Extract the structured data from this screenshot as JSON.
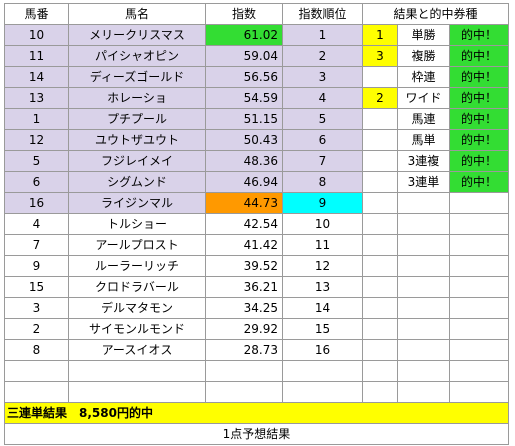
{
  "headers": {
    "umaban": "馬番",
    "bamei": "馬名",
    "shisu": "指数",
    "juni": "指数順位",
    "kekka": "結果と的中券種"
  },
  "rows": [
    {
      "umaban": "10",
      "bamei": "メリークリスマス",
      "shisu": "61.02",
      "juni": "1",
      "rank_mark": "1",
      "ticket": "単勝",
      "hit": "的中！"
    },
    {
      "umaban": "11",
      "bamei": "パイシャオピン",
      "shisu": "59.04",
      "juni": "2",
      "rank_mark": "3",
      "ticket": "複勝",
      "hit": "的中！"
    },
    {
      "umaban": "14",
      "bamei": "ディーズゴールド",
      "shisu": "56.56",
      "juni": "3",
      "rank_mark": "",
      "ticket": "枠連",
      "hit": "的中！"
    },
    {
      "umaban": "13",
      "bamei": "ホレーショ",
      "shisu": "54.59",
      "juni": "4",
      "rank_mark": "2",
      "ticket": "ワイド",
      "hit": "的中！"
    },
    {
      "umaban": "1",
      "bamei": "プチプール",
      "shisu": "51.15",
      "juni": "5",
      "rank_mark": "",
      "ticket": "馬連",
      "hit": "的中！"
    },
    {
      "umaban": "12",
      "bamei": "ユウトザユウト",
      "shisu": "50.43",
      "juni": "6",
      "rank_mark": "",
      "ticket": "馬単",
      "hit": "的中！"
    },
    {
      "umaban": "5",
      "bamei": "フジレイメイ",
      "shisu": "48.36",
      "juni": "7",
      "rank_mark": "",
      "ticket": "3連複",
      "hit": "的中！"
    },
    {
      "umaban": "6",
      "bamei": "シグムンド",
      "shisu": "46.94",
      "juni": "8",
      "rank_mark": "",
      "ticket": "3連単",
      "hit": "的中！"
    },
    {
      "umaban": "16",
      "bamei": "ライジンマル",
      "shisu": "44.73",
      "juni": "9",
      "rank_mark": "",
      "ticket": "",
      "hit": ""
    },
    {
      "umaban": "4",
      "bamei": "トルショー",
      "shisu": "42.54",
      "juni": "10",
      "rank_mark": "",
      "ticket": "",
      "hit": ""
    },
    {
      "umaban": "7",
      "bamei": "アールプロスト",
      "shisu": "41.42",
      "juni": "11",
      "rank_mark": "",
      "ticket": "",
      "hit": ""
    },
    {
      "umaban": "9",
      "bamei": "ルーラーリッチ",
      "shisu": "39.52",
      "juni": "12",
      "rank_mark": "",
      "ticket": "",
      "hit": ""
    },
    {
      "umaban": "15",
      "bamei": "クロドラバール",
      "shisu": "36.21",
      "juni": "13",
      "rank_mark": "",
      "ticket": "",
      "hit": ""
    },
    {
      "umaban": "3",
      "bamei": "デルマタモン",
      "shisu": "34.25",
      "juni": "14",
      "rank_mark": "",
      "ticket": "",
      "hit": ""
    },
    {
      "umaban": "2",
      "bamei": "サイモンルモンド",
      "shisu": "29.92",
      "juni": "15",
      "rank_mark": "",
      "ticket": "",
      "hit": ""
    },
    {
      "umaban": "8",
      "bamei": "アースイオス",
      "shisu": "28.73",
      "juni": "16",
      "rank_mark": "",
      "ticket": "",
      "hit": ""
    }
  ],
  "summary": "三連単結果　8,580円的中",
  "footer": "1点予想結果",
  "colors": {
    "selected_row": "#d9d2e9",
    "hit": "#33dd33",
    "top_index": "#33dd33",
    "index_highlight": "#ff9900",
    "rank_highlight": "#00ffff",
    "rank_mark": "#ffff00",
    "summary": "#ffff00"
  }
}
